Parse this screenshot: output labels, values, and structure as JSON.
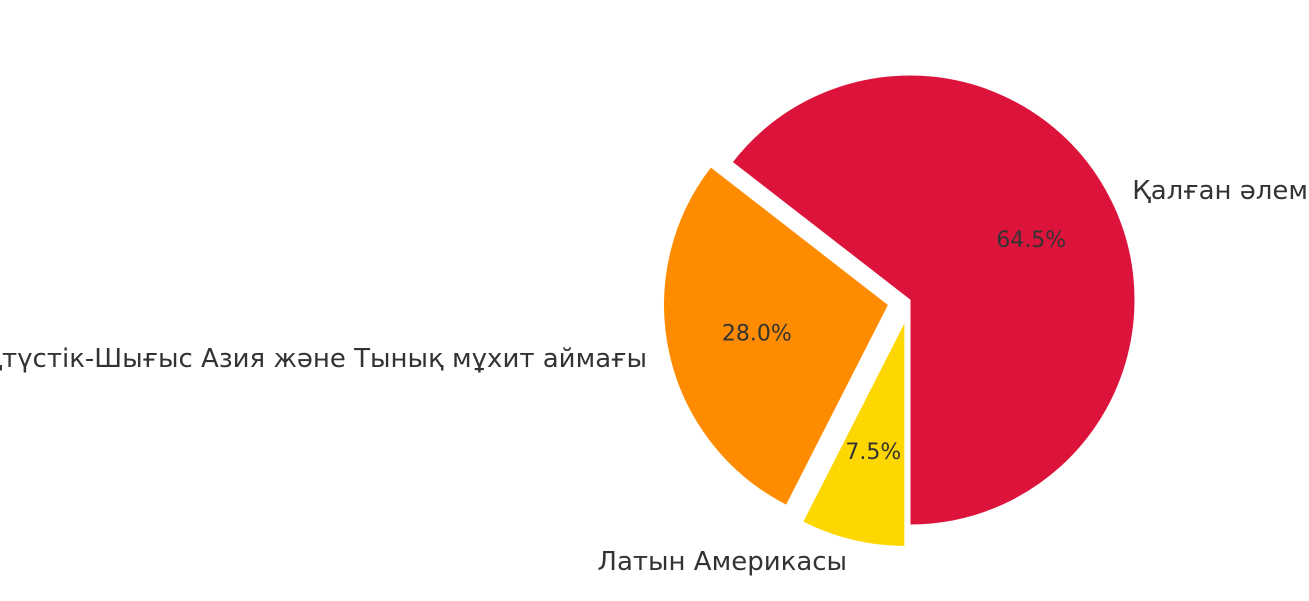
{
  "chart_data": {
    "type": "pie",
    "slices": [
      {
        "label": "Қалған әлем",
        "value": 64.5,
        "pct_label": "64.5%",
        "color": "#dc143c",
        "exploded": false
      },
      {
        "label": "Оңтүстік-Шығыс Азия және Тынық мұхит аймағы",
        "value": 28.0,
        "pct_label": "28.0%",
        "color": "#ff8c00",
        "exploded": true
      },
      {
        "label": "Латын Америкасы",
        "value": 7.5,
        "pct_label": "7.5%",
        "color": "#ffd700",
        "exploded": true
      }
    ]
  }
}
